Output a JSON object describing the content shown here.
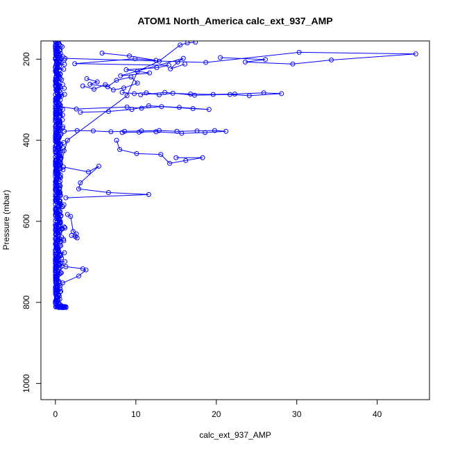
{
  "chart_data": {
    "type": "scatter",
    "title": "ATOM1 North_America calc_ext_937_AMP",
    "xlabel": "calc_ext_937_AMP",
    "ylabel": "Pressure (mbar)",
    "xlim": [
      -1.8,
      46.5
    ],
    "ylim": [
      1040,
      155
    ],
    "y_reversed": true,
    "x_ticks": [
      0,
      10,
      20,
      30,
      40
    ],
    "y_ticks": [
      200,
      400,
      600,
      800,
      1000
    ],
    "grid": false,
    "legend": "none",
    "color": "#0000ff",
    "marker": "open-circle",
    "connected": true,
    "bulk_column": {
      "x_range": [
        0,
        1.2
      ],
      "y_range": [
        155,
        812
      ]
    },
    "series": [
      {
        "x": [
          5.8,
          9.2,
          12.5,
          9.9,
          2.4,
          14.1,
          12.6,
          8.8,
          11.7,
          8.1,
          15.9,
          15.2,
          14.3,
          16.1
        ],
        "y": [
          185,
          192,
          203,
          199,
          211,
          215,
          221,
          226,
          234,
          241,
          198,
          207,
          224,
          212
        ]
      },
      {
        "x": [
          1.2,
          18.7,
          30.3,
          44.8,
          34.3,
          29.5,
          23.6,
          26.1,
          20.5
        ],
        "y": [
          198,
          208,
          183,
          187,
          202,
          212,
          207,
          201,
          196
        ]
      },
      {
        "x": [
          3.9,
          5.2,
          4.3,
          6.5,
          7.6,
          9.4,
          10.2,
          8.5,
          7.2,
          6.2,
          4.8,
          3.4
        ],
        "y": [
          248,
          256,
          262,
          268,
          252,
          244,
          259,
          271,
          276,
          263,
          274,
          266
        ]
      },
      {
        "x": [
          8.3,
          9.8,
          11.3,
          12.9,
          14.6,
          16.8,
          19.6,
          22.3,
          25.9,
          28.1,
          24.1,
          21.7,
          17.3,
          13.6,
          10.6
        ],
        "y": [
          282,
          285,
          283,
          288,
          284,
          286,
          287,
          286,
          283,
          285,
          290,
          287,
          289,
          282,
          288
        ]
      },
      {
        "x": [
          0.3,
          2.6,
          8.9,
          10.7,
          13.2,
          17.1,
          19.1,
          15.4,
          11.6,
          9.5,
          6.6,
          3.1
        ],
        "y": [
          316,
          323,
          318,
          321,
          317,
          322,
          324,
          319,
          315,
          324,
          329,
          331
        ]
      },
      {
        "x": [
          1.1,
          2.7,
          4.7,
          6.9,
          8.6,
          10.7,
          12.9,
          15.1,
          17.6,
          19.8,
          21.2,
          18.6,
          15.7,
          12.5,
          10.4,
          8.3
        ],
        "y": [
          378,
          376,
          377,
          379,
          378,
          377,
          376,
          378,
          377,
          376,
          378,
          381,
          383,
          379,
          380,
          381
        ]
      },
      {
        "x": [
          7.6,
          8.0,
          10.1,
          13.1,
          14.2,
          16.2,
          18.3,
          15.0
        ],
        "y": [
          400,
          423,
          433,
          435,
          457,
          450,
          443,
          443
        ]
      },
      {
        "x": [
          1.0,
          4.1,
          5.4,
          3.1,
          2.9,
          6.6,
          11.6,
          1.3
        ],
        "y": [
          466,
          478,
          464,
          505,
          520,
          529,
          534,
          542
        ]
      },
      {
        "x": [
          1.5,
          1.9,
          2.2,
          2.6,
          2.5,
          2.7,
          2.0
        ],
        "y": [
          583,
          588,
          625,
          631,
          638,
          641,
          635
        ]
      },
      {
        "x": [
          0.6,
          1.3,
          3.4,
          3.8,
          2.9,
          0.9
        ],
        "y": [
          705,
          712,
          717,
          720,
          735,
          752
        ]
      },
      {
        "x": [
          0.5,
          1.5,
          8.9,
          10.2,
          12.9,
          15.5,
          16.4,
          17.4
        ],
        "y": [
          470,
          400,
          290,
          230,
          205,
          165,
          160,
          158
        ]
      }
    ]
  }
}
